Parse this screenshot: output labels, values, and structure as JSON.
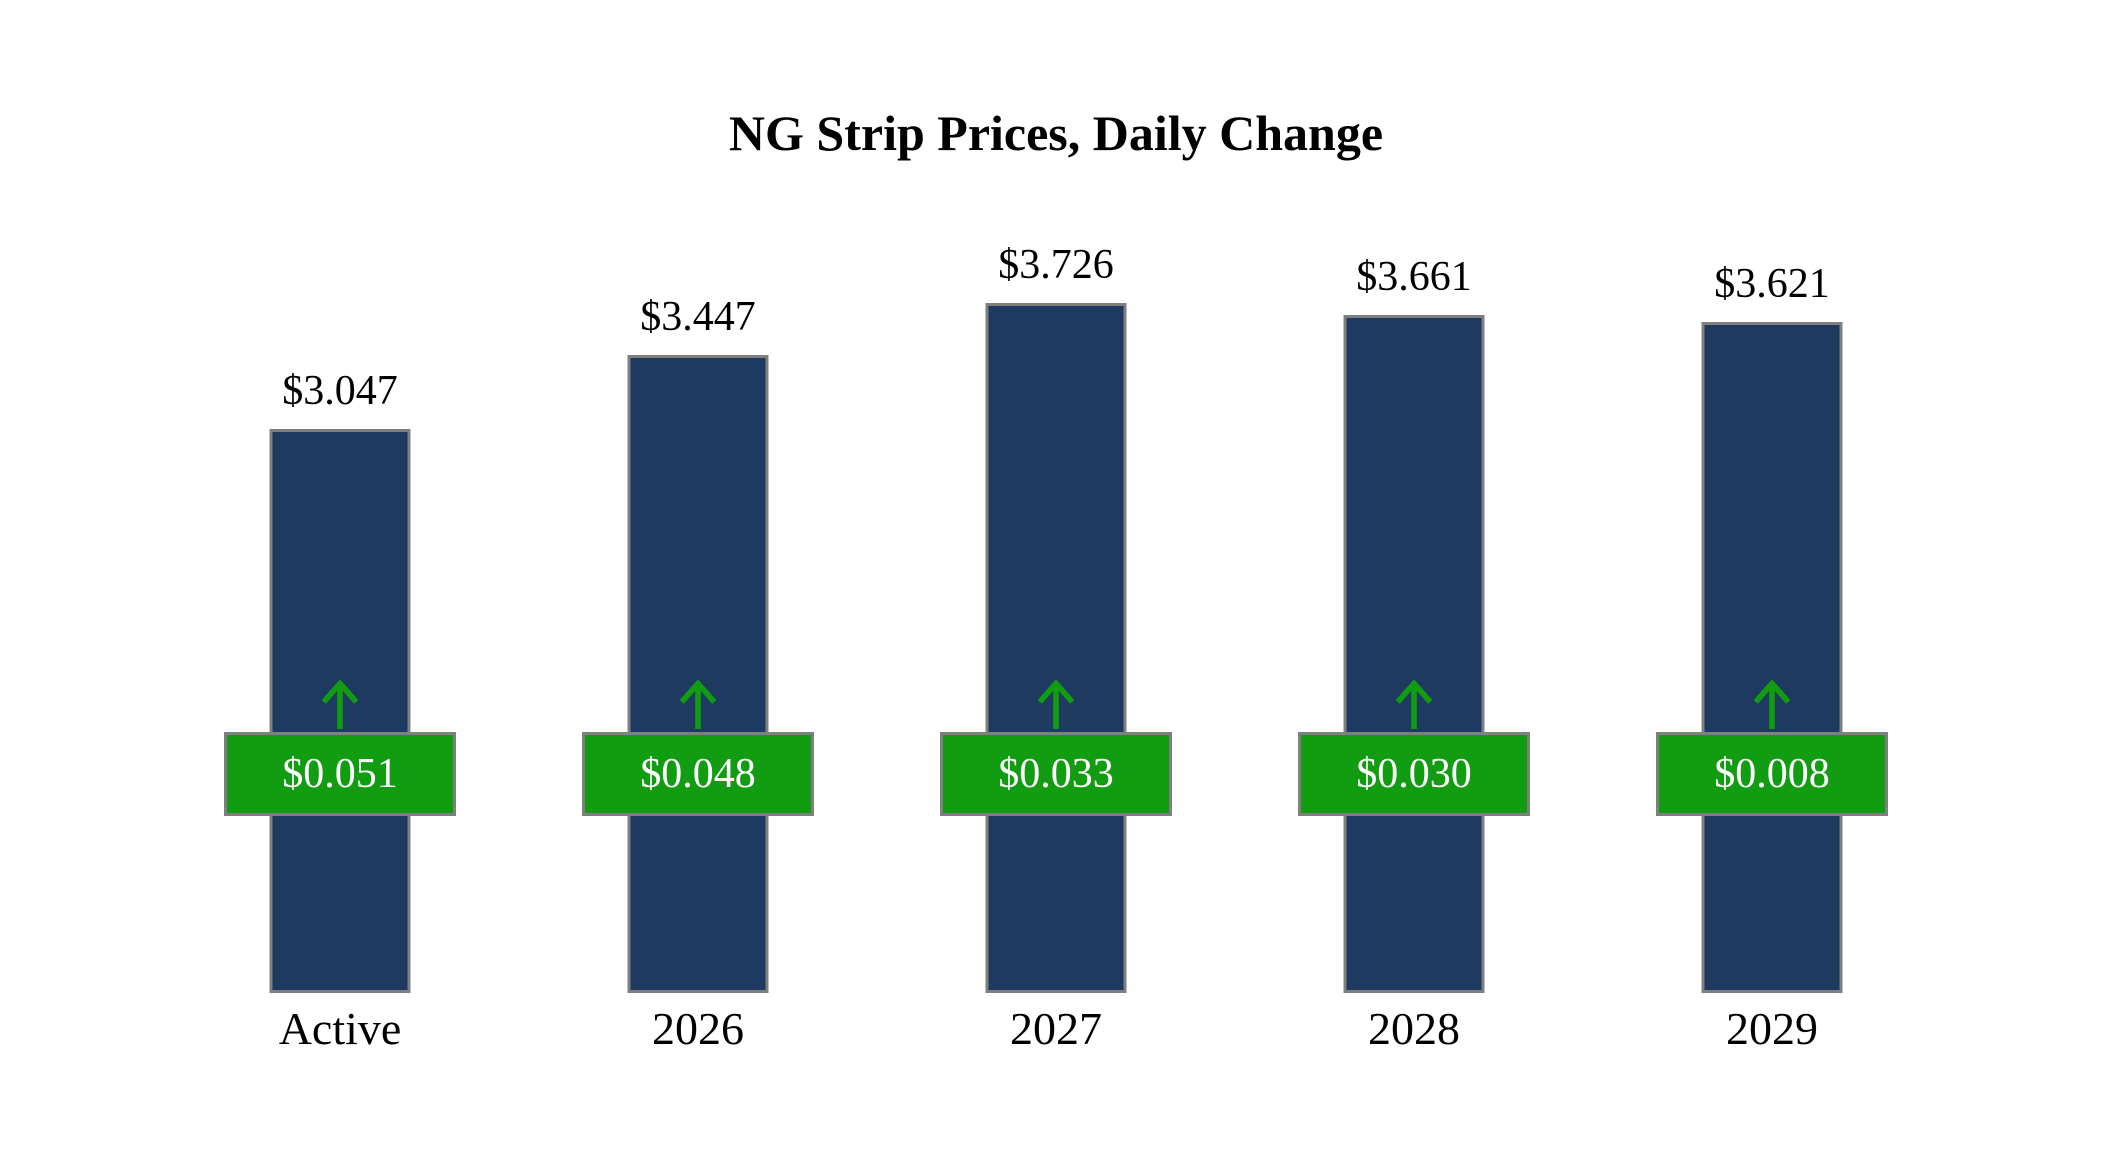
{
  "chart_data": {
    "type": "bar",
    "title": "NG Strip Prices, Daily Change",
    "categories": [
      "Active",
      "2026",
      "2027",
      "2028",
      "2029"
    ],
    "series": [
      {
        "name": "Strip Price",
        "values": [
          3.047,
          3.447,
          3.726,
          3.661,
          3.621
        ]
      },
      {
        "name": "Daily Change",
        "values": [
          0.051,
          0.048,
          0.033,
          0.03,
          0.008
        ]
      }
    ],
    "value_labels": [
      "$3.047",
      "$3.447",
      "$3.726",
      "$3.661",
      "$3.621"
    ],
    "change_labels": [
      "$0.051",
      "$0.048",
      "$0.033",
      "$0.030",
      "$0.008"
    ],
    "change_direction": "up",
    "ylim": [
      0,
      4
    ],
    "grid": false,
    "legend": "none",
    "colors": {
      "bar": "#1f3a60",
      "bar_border": "#7f7f7f",
      "badge": "#129c12",
      "badge_border": "#7f7f7f",
      "arrow": "#129c12",
      "text": "#000000",
      "badge_text": "#ffffff"
    }
  }
}
